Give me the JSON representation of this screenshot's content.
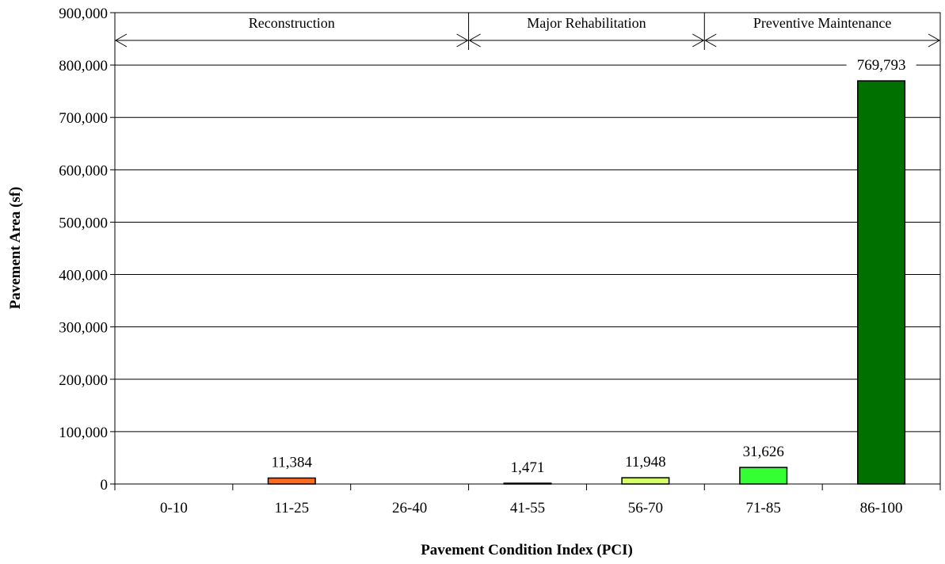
{
  "chart_data": {
    "type": "bar",
    "title": "",
    "xlabel": "Pavement Condition Index (PCI)",
    "ylabel": "Pavement Area (sf)",
    "ylim": [
      0,
      900000
    ],
    "yticks": [
      0,
      100000,
      200000,
      300000,
      400000,
      500000,
      600000,
      700000,
      800000,
      900000
    ],
    "ytick_labels": [
      "0",
      "100,000",
      "200,000",
      "300,000",
      "400,000",
      "500,000",
      "600,000",
      "700,000",
      "800,000",
      "900,000"
    ],
    "grid": true,
    "categories": [
      "0-10",
      "11-25",
      "26-40",
      "41-55",
      "56-70",
      "71-85",
      "86-100"
    ],
    "values": [
      0,
      11384,
      0,
      1471,
      11948,
      31626,
      769793
    ],
    "data_labels": [
      "",
      "11,384",
      "",
      "1,471",
      "11,948",
      "31,626",
      "769,793"
    ],
    "colors": [
      "#ff0000",
      "#ff6b1a",
      "#ffa500",
      "#4a4a00",
      "#d4ff66",
      "#33ff33",
      "#007000"
    ],
    "bands": [
      {
        "label": "Reconstruction",
        "from_category": 0,
        "to_category": 2
      },
      {
        "label": "Major Rehabilitation",
        "from_category": 3,
        "to_category": 4
      },
      {
        "label": "Preventive Maintenance",
        "from_category": 5,
        "to_category": 6
      }
    ]
  }
}
